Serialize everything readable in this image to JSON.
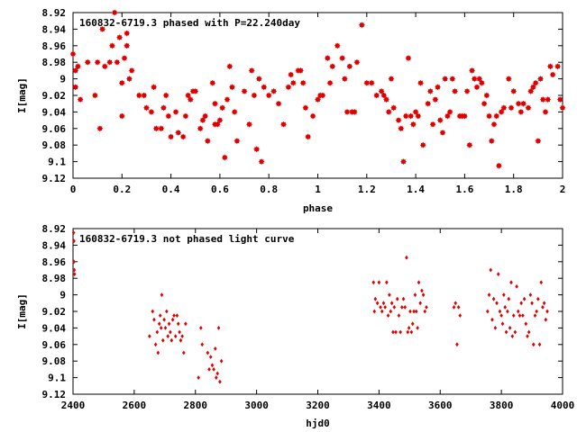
{
  "chart_data": [
    {
      "type": "scatter",
      "title": "160832-6719.3 phased with P=22.240day",
      "xlabel": "phase",
      "ylabel": "I[mag]",
      "xlim": [
        0,
        2
      ],
      "ylim": [
        8.92,
        9.12
      ],
      "y_inverted": true,
      "grid": false,
      "xticks": [
        "0",
        "0.2",
        "0.4",
        "0.6",
        "0.8",
        "1",
        "1.2",
        "1.4",
        "1.6",
        "1.8",
        "2"
      ],
      "xtick_values": [
        0,
        0.2,
        0.4,
        0.6,
        0.8,
        1.0,
        1.2,
        1.4,
        1.6,
        1.8,
        2.0
      ],
      "yticks": [
        "8.92",
        "8.94",
        "8.96",
        "8.98",
        "9",
        "9.02",
        "9.04",
        "9.06",
        "9.08",
        "9.1",
        "9.12"
      ],
      "ytick_values": [
        8.92,
        8.94,
        8.96,
        8.98,
        9.0,
        9.02,
        9.04,
        9.06,
        9.08,
        9.1,
        9.12
      ],
      "marker": "star",
      "color": "#e00000",
      "points": [
        [
          0.0,
          8.97
        ],
        [
          0.01,
          8.99
        ],
        [
          0.01,
          9.01
        ],
        [
          0.02,
          8.985
        ],
        [
          0.03,
          9.025
        ],
        [
          0.06,
          8.98
        ],
        [
          0.09,
          9.02
        ],
        [
          0.1,
          8.98
        ],
        [
          0.11,
          9.06
        ],
        [
          0.12,
          8.94
        ],
        [
          0.13,
          8.985
        ],
        [
          0.15,
          8.98
        ],
        [
          0.16,
          8.96
        ],
        [
          0.17,
          8.92
        ],
        [
          0.18,
          8.98
        ],
        [
          0.19,
          8.95
        ],
        [
          0.2,
          9.005
        ],
        [
          0.2,
          9.045
        ],
        [
          0.21,
          8.975
        ],
        [
          0.22,
          8.96
        ],
        [
          0.22,
          8.945
        ],
        [
          0.23,
          9.0
        ],
        [
          0.24,
          8.99
        ],
        [
          0.27,
          9.02
        ],
        [
          0.29,
          9.02
        ],
        [
          0.3,
          9.035
        ],
        [
          0.32,
          9.04
        ],
        [
          0.33,
          9.01
        ],
        [
          0.34,
          9.06
        ],
        [
          0.36,
          9.06
        ],
        [
          0.37,
          9.035
        ],
        [
          0.38,
          9.02
        ],
        [
          0.39,
          9.045
        ],
        [
          0.4,
          9.07
        ],
        [
          0.42,
          9.04
        ],
        [
          0.43,
          9.065
        ],
        [
          0.45,
          9.07
        ],
        [
          0.46,
          9.045
        ],
        [
          0.47,
          9.02
        ],
        [
          0.48,
          9.025
        ],
        [
          0.49,
          9.015
        ],
        [
          0.5,
          9.015
        ],
        [
          0.52,
          9.06
        ],
        [
          0.53,
          9.05
        ],
        [
          0.54,
          9.045
        ],
        [
          0.55,
          9.075
        ],
        [
          0.57,
          9.005
        ],
        [
          0.58,
          9.055
        ],
        [
          0.58,
          9.03
        ],
        [
          0.59,
          9.055
        ],
        [
          0.6,
          9.05
        ],
        [
          0.61,
          9.035
        ],
        [
          0.62,
          9.095
        ],
        [
          0.63,
          9.025
        ],
        [
          0.64,
          8.985
        ],
        [
          0.65,
          9.01
        ],
        [
          0.66,
          9.04
        ],
        [
          0.67,
          9.075
        ],
        [
          0.7,
          9.015
        ],
        [
          0.72,
          9.055
        ],
        [
          0.73,
          8.99
        ],
        [
          0.74,
          9.02
        ],
        [
          0.75,
          9.085
        ],
        [
          0.76,
          9.0
        ],
        [
          0.77,
          9.1
        ],
        [
          0.78,
          9.01
        ],
        [
          0.8,
          9.02
        ],
        [
          0.82,
          9.015
        ],
        [
          0.84,
          9.03
        ],
        [
          0.86,
          9.055
        ],
        [
          0.88,
          9.01
        ],
        [
          0.89,
          8.995
        ],
        [
          0.9,
          9.005
        ],
        [
          0.92,
          8.99
        ],
        [
          0.93,
          8.99
        ],
        [
          0.94,
          9.005
        ],
        [
          0.95,
          9.035
        ],
        [
          0.96,
          9.07
        ],
        [
          0.98,
          9.045
        ],
        [
          1.0,
          9.025
        ],
        [
          1.01,
          9.02
        ],
        [
          1.02,
          9.02
        ],
        [
          1.04,
          8.975
        ],
        [
          1.05,
          9.005
        ],
        [
          1.06,
          8.985
        ],
        [
          1.08,
          8.96
        ],
        [
          1.1,
          8.975
        ],
        [
          1.11,
          9.0
        ],
        [
          1.12,
          9.04
        ],
        [
          1.13,
          8.985
        ],
        [
          1.14,
          9.04
        ],
        [
          1.15,
          9.04
        ],
        [
          1.16,
          8.98
        ],
        [
          1.18,
          8.935
        ],
        [
          1.2,
          9.005
        ],
        [
          1.22,
          9.005
        ],
        [
          1.24,
          9.02
        ],
        [
          1.26,
          9.015
        ],
        [
          1.27,
          9.02
        ],
        [
          1.28,
          9.025
        ],
        [
          1.29,
          9.04
        ],
        [
          1.3,
          9.0
        ],
        [
          1.31,
          9.035
        ],
        [
          1.33,
          9.05
        ],
        [
          1.34,
          9.06
        ],
        [
          1.35,
          9.1
        ],
        [
          1.36,
          9.045
        ],
        [
          1.37,
          8.975
        ],
        [
          1.38,
          9.045
        ],
        [
          1.39,
          9.055
        ],
        [
          1.4,
          9.04
        ],
        [
          1.41,
          9.045
        ],
        [
          1.42,
          9.005
        ],
        [
          1.43,
          9.08
        ],
        [
          1.45,
          9.03
        ],
        [
          1.46,
          9.015
        ],
        [
          1.47,
          9.055
        ],
        [
          1.48,
          9.025
        ],
        [
          1.49,
          9.01
        ],
        [
          1.5,
          9.05
        ],
        [
          1.51,
          9.065
        ],
        [
          1.52,
          9.0
        ],
        [
          1.53,
          9.045
        ],
        [
          1.54,
          9.04
        ],
        [
          1.55,
          9.0
        ],
        [
          1.56,
          9.015
        ],
        [
          1.58,
          9.045
        ],
        [
          1.59,
          9.045
        ],
        [
          1.6,
          9.045
        ],
        [
          1.61,
          9.015
        ],
        [
          1.62,
          9.08
        ],
        [
          1.63,
          8.99
        ],
        [
          1.64,
          9.0
        ],
        [
          1.65,
          9.01
        ],
        [
          1.66,
          9.0
        ],
        [
          1.67,
          9.005
        ],
        [
          1.68,
          9.03
        ],
        [
          1.69,
          9.02
        ],
        [
          1.7,
          9.045
        ],
        [
          1.71,
          9.075
        ],
        [
          1.72,
          9.055
        ],
        [
          1.73,
          9.045
        ],
        [
          1.74,
          9.105
        ],
        [
          1.75,
          9.04
        ],
        [
          1.76,
          9.035
        ],
        [
          1.78,
          9.0
        ],
        [
          1.79,
          9.035
        ],
        [
          1.8,
          9.015
        ],
        [
          1.82,
          9.03
        ],
        [
          1.83,
          9.04
        ],
        [
          1.84,
          9.03
        ],
        [
          1.86,
          9.035
        ],
        [
          1.87,
          9.015
        ],
        [
          1.88,
          9.01
        ],
        [
          1.89,
          9.005
        ],
        [
          1.9,
          9.075
        ],
        [
          1.91,
          9.0
        ],
        [
          1.92,
          9.025
        ],
        [
          1.93,
          9.04
        ],
        [
          1.94,
          9.025
        ],
        [
          1.95,
          8.985
        ],
        [
          1.96,
          8.995
        ],
        [
          1.98,
          8.985
        ],
        [
          1.99,
          9.025
        ],
        [
          2.0,
          9.035
        ]
      ]
    },
    {
      "type": "scatter",
      "title": "160832-6719.3 not phased light curve",
      "xlabel": "hjd0",
      "ylabel": "I[mag]",
      "xlim": [
        2400,
        4000
      ],
      "ylim": [
        8.92,
        9.12
      ],
      "y_inverted": true,
      "grid": false,
      "xticks": [
        "2400",
        "2600",
        "2800",
        "3000",
        "3200",
        "3400",
        "3600",
        "3800",
        "4000"
      ],
      "xtick_values": [
        2400,
        2600,
        2800,
        3000,
        3200,
        3400,
        3600,
        3800,
        4000
      ],
      "yticks": [
        "8.92",
        "8.94",
        "8.96",
        "8.98",
        "9",
        "9.02",
        "9.04",
        "9.06",
        "9.08",
        "9.1",
        "9.12"
      ],
      "ytick_values": [
        8.92,
        8.94,
        8.96,
        8.98,
        9.0,
        9.02,
        9.04,
        9.06,
        9.08,
        9.1,
        9.12
      ],
      "marker": "diamond",
      "color": "#e00000",
      "points": [
        [
          2402,
          8.925
        ],
        [
          2403,
          8.935
        ],
        [
          2403,
          8.96
        ],
        [
          2404,
          8.97
        ],
        [
          2405,
          8.975
        ],
        [
          2650,
          9.05
        ],
        [
          2660,
          9.02
        ],
        [
          2665,
          9.03
        ],
        [
          2670,
          9.06
        ],
        [
          2675,
          9.045
        ],
        [
          2678,
          9.07
        ],
        [
          2682,
          9.035
        ],
        [
          2685,
          9.025
        ],
        [
          2688,
          9.04
        ],
        [
          2690,
          9.0
        ],
        [
          2694,
          9.055
        ],
        [
          2698,
          9.03
        ],
        [
          2702,
          9.04
        ],
        [
          2706,
          9.02
        ],
        [
          2710,
          9.05
        ],
        [
          2714,
          9.035
        ],
        [
          2718,
          9.045
        ],
        [
          2722,
          9.055
        ],
        [
          2726,
          9.03
        ],
        [
          2730,
          9.025
        ],
        [
          2735,
          9.05
        ],
        [
          2740,
          9.025
        ],
        [
          2744,
          9.035
        ],
        [
          2748,
          9.045
        ],
        [
          2752,
          9.055
        ],
        [
          2757,
          9.05
        ],
        [
          2762,
          9.07
        ],
        [
          2768,
          9.035
        ],
        [
          2810,
          9.1
        ],
        [
          2818,
          9.04
        ],
        [
          2822,
          9.06
        ],
        [
          2840,
          9.07
        ],
        [
          2845,
          9.09
        ],
        [
          2850,
          9.075
        ],
        [
          2855,
          9.085
        ],
        [
          2860,
          9.09
        ],
        [
          2865,
          9.065
        ],
        [
          2868,
          9.1
        ],
        [
          2872,
          9.095
        ],
        [
          2876,
          9.04
        ],
        [
          2880,
          9.105
        ],
        [
          2885,
          9.08
        ],
        [
          3382,
          8.985
        ],
        [
          3385,
          9.02
        ],
        [
          3388,
          9.005
        ],
        [
          3395,
          9.01
        ],
        [
          3400,
          8.985
        ],
        [
          3405,
          9.015
        ],
        [
          3410,
          9.02
        ],
        [
          3415,
          9.01
        ],
        [
          3420,
          9.015
        ],
        [
          3425,
          8.985
        ],
        [
          3430,
          9.025
        ],
        [
          3434,
          9.0
        ],
        [
          3438,
          9.02
        ],
        [
          3442,
          9.01
        ],
        [
          3446,
          9.045
        ],
        [
          3450,
          9.015
        ],
        [
          3455,
          9.045
        ],
        [
          3460,
          9.005
        ],
        [
          3465,
          9.025
        ],
        [
          3470,
          9.045
        ],
        [
          3475,
          9.015
        ],
        [
          3480,
          9.005
        ],
        [
          3485,
          9.015
        ],
        [
          3490,
          8.955
        ],
        [
          3494,
          9.045
        ],
        [
          3498,
          9.04
        ],
        [
          3502,
          9.02
        ],
        [
          3506,
          9.045
        ],
        [
          3510,
          9.035
        ],
        [
          3514,
          9.02
        ],
        [
          3518,
          9.0
        ],
        [
          3522,
          9.02
        ],
        [
          3526,
          9.04
        ],
        [
          3530,
          8.985
        ],
        [
          3535,
          9.01
        ],
        [
          3540,
          8.995
        ],
        [
          3545,
          9.0
        ],
        [
          3550,
          9.02
        ],
        [
          3555,
          9.015
        ],
        [
          3645,
          9.015
        ],
        [
          3650,
          9.01
        ],
        [
          3655,
          9.06
        ],
        [
          3660,
          9.015
        ],
        [
          3665,
          9.025
        ],
        [
          3755,
          9.02
        ],
        [
          3760,
          9.0
        ],
        [
          3765,
          8.97
        ],
        [
          3770,
          9.03
        ],
        [
          3775,
          9.005
        ],
        [
          3780,
          9.04
        ],
        [
          3785,
          9.01
        ],
        [
          3790,
          8.975
        ],
        [
          3795,
          9.02
        ],
        [
          3800,
          9.025
        ],
        [
          3804,
          9.035
        ],
        [
          3808,
          9.0
        ],
        [
          3812,
          9.015
        ],
        [
          3816,
          9.045
        ],
        [
          3820,
          9.02
        ],
        [
          3824,
          9.005
        ],
        [
          3828,
          9.04
        ],
        [
          3832,
          8.985
        ],
        [
          3836,
          9.05
        ],
        [
          3840,
          9.025
        ],
        [
          3845,
          9.045
        ],
        [
          3850,
          8.99
        ],
        [
          3855,
          9.02
        ],
        [
          3860,
          9.025
        ],
        [
          3865,
          9.01
        ],
        [
          3870,
          9.025
        ],
        [
          3875,
          9.005
        ],
        [
          3880,
          9.035
        ],
        [
          3885,
          9.05
        ],
        [
          3890,
          9.045
        ],
        [
          3895,
          9.0
        ],
        [
          3900,
          9.01
        ],
        [
          3905,
          9.06
        ],
        [
          3910,
          9.025
        ],
        [
          3915,
          9.02
        ],
        [
          3920,
          9.005
        ],
        [
          3925,
          9.06
        ],
        [
          3930,
          8.985
        ],
        [
          3935,
          9.015
        ],
        [
          3940,
          9.01
        ],
        [
          3945,
          9.03
        ],
        [
          3950,
          9.02
        ]
      ]
    }
  ]
}
